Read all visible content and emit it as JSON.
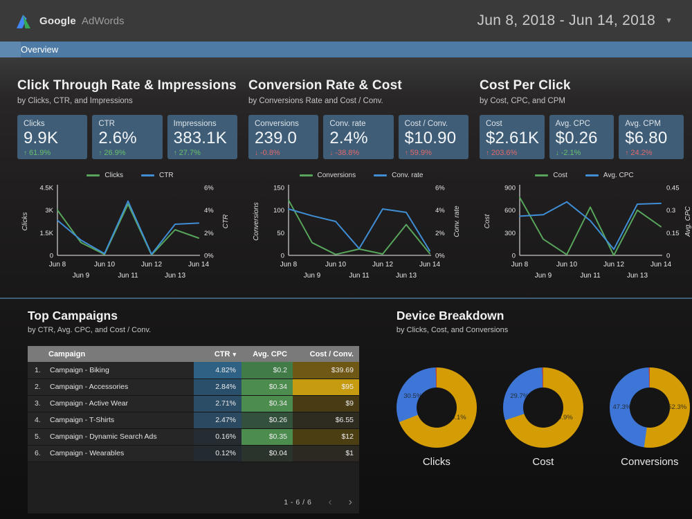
{
  "header": {
    "logo_google": "Google",
    "logo_product": "AdWords",
    "date_range": "Jun 8, 2018 - Jun 14, 2018"
  },
  "nav": {
    "tab": "Overview"
  },
  "sections": [
    {
      "title": "Click Through Rate & Impressions",
      "subtitle": "by Clicks, CTR, and Impressions",
      "scorecards": [
        {
          "label": "Clicks",
          "value": "9.9K",
          "arrow": "up",
          "delta": "61.9%",
          "tone": "positive"
        },
        {
          "label": "CTR",
          "value": "2.6%",
          "arrow": "up",
          "delta": "26.9%",
          "tone": "positive"
        },
        {
          "label": "Impressions",
          "value": "383.1K",
          "arrow": "up",
          "delta": "27.7%",
          "tone": "positive"
        }
      ]
    },
    {
      "title": "Conversion Rate & Cost",
      "subtitle": "by Conversions Rate and Cost / Conv.",
      "scorecards": [
        {
          "label": "Conversions",
          "value": "239.0",
          "arrow": "down",
          "delta": "-0.8%",
          "tone": "negative"
        },
        {
          "label": "Conv. rate",
          "value": "2.4%",
          "arrow": "down",
          "delta": "-38.8%",
          "tone": "negative"
        },
        {
          "label": "Cost / Conv.",
          "value": "$10.90",
          "arrow": "up",
          "delta": "59.9%",
          "tone": "negative"
        }
      ]
    },
    {
      "title": "Cost Per Click",
      "subtitle": "by Cost, CPC, and CPM",
      "scorecards": [
        {
          "label": "Cost",
          "value": "$2.61K",
          "arrow": "up",
          "delta": "203.6%",
          "tone": "negative"
        },
        {
          "label": "Avg. CPC",
          "value": "$0.26",
          "arrow": "down",
          "delta": "-2.1%",
          "tone": "positive"
        },
        {
          "label": "Avg. CPM",
          "value": "$6.80",
          "arrow": "up",
          "delta": "24.2%",
          "tone": "negative"
        }
      ]
    }
  ],
  "bottom": {
    "campaigns": {
      "title": "Top Campaigns",
      "subtitle": "by CTR, Avg. CPC, and Cost / Conv.",
      "pagination": "1 - 6 / 6",
      "prev_icon": "‹",
      "next_icon": "›"
    },
    "devices": {
      "title": "Device Breakdown",
      "subtitle": "by Clicks, Cost, and Conversions"
    }
  },
  "chart_data": [
    {
      "type": "line",
      "name": "clicks-ctr-timeseries",
      "x": [
        "Jun 8",
        "Jun 9",
        "Jun 10",
        "Jun 11",
        "Jun 12",
        "Jun 13",
        "Jun 14"
      ],
      "series": [
        {
          "name": "Clicks",
          "axis": "left",
          "color": "#58a55c",
          "values": [
            3000,
            850,
            60,
            3400,
            30,
            1700,
            1150
          ]
        },
        {
          "name": "CTR",
          "axis": "right",
          "color": "#3f8ed6",
          "values": [
            3.1,
            1.35,
            0.15,
            4.8,
            0.1,
            2.75,
            2.85
          ]
        }
      ],
      "left_axis": {
        "label": "Clicks",
        "range": [
          0,
          4500
        ],
        "ticks": [
          "0",
          "1.5K",
          "3K",
          "4.5K"
        ]
      },
      "right_axis": {
        "label": "CTR",
        "range": [
          0,
          6
        ],
        "ticks": [
          "0%",
          "2%",
          "4%",
          "6%"
        ]
      },
      "grid": false,
      "legend_position": "top"
    },
    {
      "type": "line",
      "name": "conversions-convrate-timeseries",
      "x": [
        "Jun 8",
        "Jun 9",
        "Jun 10",
        "Jun 11",
        "Jun 12",
        "Jun 13",
        "Jun 14"
      ],
      "series": [
        {
          "name": "Conversions",
          "axis": "left",
          "color": "#58a55c",
          "values": [
            122,
            28,
            2,
            14,
            3,
            68,
            4
          ]
        },
        {
          "name": "Conv. rate",
          "axis": "right",
          "color": "#3f8ed6",
          "values": [
            4.1,
            3.5,
            3.0,
            0.6,
            4.1,
            3.8,
            0.4
          ]
        }
      ],
      "left_axis": {
        "label": "Conversions",
        "range": [
          0,
          150
        ],
        "ticks": [
          "0",
          "50",
          "100",
          "150"
        ]
      },
      "right_axis": {
        "label": "Conv. rate",
        "range": [
          0,
          6
        ],
        "ticks": [
          "0%",
          "2%",
          "4%",
          "6%"
        ]
      },
      "grid": false,
      "legend_position": "top"
    },
    {
      "type": "line",
      "name": "cost-cpc-timeseries",
      "x": [
        "Jun 8",
        "Jun 9",
        "Jun 10",
        "Jun 11",
        "Jun 12",
        "Jun 13",
        "Jun 14"
      ],
      "series": [
        {
          "name": "Cost",
          "axis": "left",
          "color": "#58a55c",
          "values": [
            770,
            215,
            10,
            640,
            0,
            600,
            380
          ]
        },
        {
          "name": "Avg. CPC",
          "axis": "right",
          "color": "#3f8ed6",
          "values": [
            0.26,
            0.27,
            0.355,
            0.23,
            0.04,
            0.34,
            0.345
          ]
        }
      ],
      "left_axis": {
        "label": "Cost",
        "range": [
          0,
          900
        ],
        "ticks": [
          "0",
          "300",
          "600",
          "900"
        ]
      },
      "right_axis": {
        "label": "Avg. CPC",
        "range": [
          0,
          0.45
        ],
        "ticks": [
          "0",
          "0.15",
          "0.3",
          "0.45"
        ]
      },
      "grid": false,
      "legend_position": "top"
    },
    {
      "type": "table",
      "name": "top-campaigns-table",
      "headers": [
        "Campaign",
        "CTR",
        "Avg. CPC",
        "Cost / Conv."
      ],
      "sorted_by": "CTR",
      "rows": [
        {
          "rank": "1.",
          "name": "Campaign - Biking",
          "ctr": "4.82%",
          "cpc": "$0.2",
          "cost_conv": "$39.69",
          "colors": {
            "ctr": "#2f6184",
            "cpc": "#417c48",
            "cost_conv": "#6f5716"
          }
        },
        {
          "rank": "2.",
          "name": "Campaign - Accessories",
          "ctr": "2.84%",
          "cpc": "$0.34",
          "cost_conv": "$95",
          "colors": {
            "ctr": "#2a4f6b",
            "cpc": "#4c8c4f",
            "cost_conv": "#c79b10"
          }
        },
        {
          "rank": "3.",
          "name": "Campaign - Active Wear",
          "ctr": "2.71%",
          "cpc": "$0.34",
          "cost_conv": "$9",
          "colors": {
            "ctr": "#2c4d66",
            "cpc": "#4c8c4f",
            "cost_conv": "#493b14"
          }
        },
        {
          "rank": "4.",
          "name": "Campaign - T-Shirts",
          "ctr": "2.47%",
          "cpc": "$0.26",
          "cost_conv": "$6.55",
          "colors": {
            "ctr": "#2b4a61",
            "cpc": "#33503c",
            "cost_conv": "#2e2b20"
          }
        },
        {
          "rank": "5.",
          "name": "Campaign - Dynamic Search Ads",
          "ctr": "0.16%",
          "cpc": "$0.35",
          "cost_conv": "$12",
          "colors": {
            "ctr": "#252d33",
            "cpc": "#4c8c4f",
            "cost_conv": "#4c3e13"
          }
        },
        {
          "rank": "6.",
          "name": "Campaign - Wearables",
          "ctr": "0.12%",
          "cpc": "$0.04",
          "cost_conv": "$1",
          "colors": {
            "ctr": "#242b30",
            "cpc": "#2a332c",
            "cost_conv": "#2b2922"
          }
        }
      ]
    },
    {
      "type": "donut",
      "name": "device-breakdown-clicks",
      "caption": "Clicks",
      "slices": [
        {
          "value": 69.1,
          "color": "#d49d05",
          "shown_label": "69.1%",
          "side": "right"
        },
        {
          "value": 30.5,
          "color": "#3d76d6",
          "shown_label": "30.5%",
          "side": "left"
        },
        {
          "value": 0.4,
          "color": "#b5443a",
          "shown_label": "",
          "side": ""
        }
      ]
    },
    {
      "type": "donut",
      "name": "device-breakdown-cost",
      "caption": "Cost",
      "slices": [
        {
          "value": 69.9,
          "color": "#d49d05",
          "shown_label": "69.9%",
          "side": "right"
        },
        {
          "value": 29.7,
          "color": "#3d76d6",
          "shown_label": "29.7%",
          "side": "left"
        },
        {
          "value": 0.4,
          "color": "#b5443a",
          "shown_label": "",
          "side": ""
        }
      ]
    },
    {
      "type": "donut",
      "name": "device-breakdown-conversions",
      "caption": "Conversions",
      "balanced": true,
      "slices": [
        {
          "value": 52.3,
          "color": "#d49d05",
          "shown_label": "52.3%",
          "side": "right"
        },
        {
          "value": 47.3,
          "color": "#3d76d6",
          "shown_label": "47.3%",
          "side": "left"
        },
        {
          "value": 0.4,
          "color": "#b5443a",
          "shown_label": "",
          "side": ""
        }
      ]
    }
  ]
}
